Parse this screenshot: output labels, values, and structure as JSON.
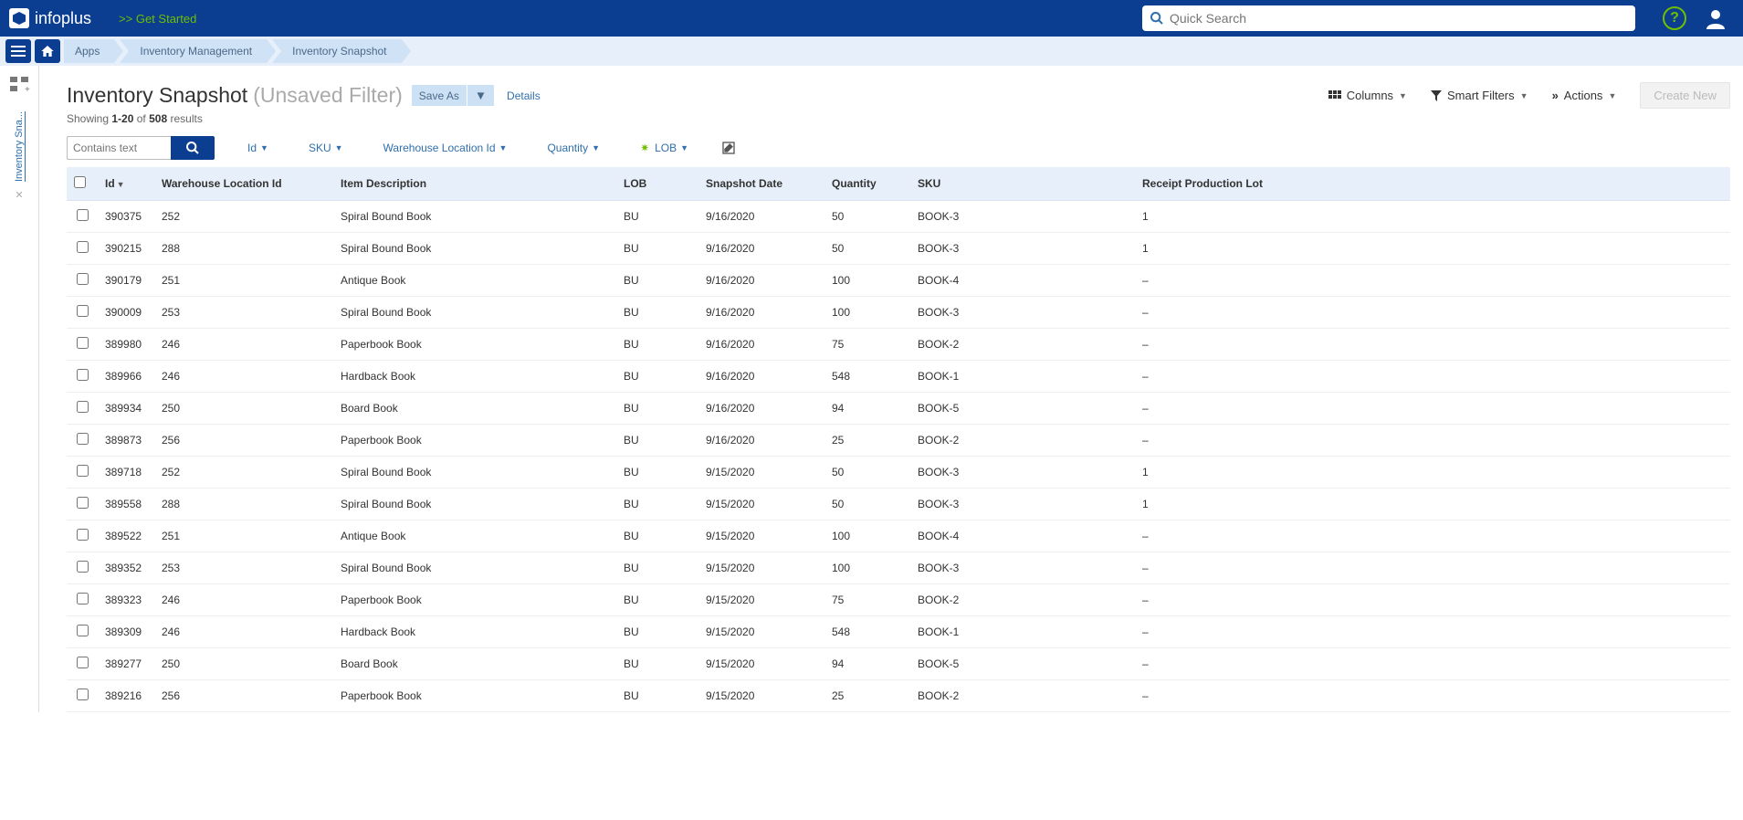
{
  "header": {
    "logo_text": "infoplus",
    "get_started": ">> Get Started",
    "quick_search_placeholder": "Quick Search"
  },
  "breadcrumbs": [
    "Apps",
    "Inventory Management",
    "Inventory Snapshot"
  ],
  "rail": {
    "tab_label": "Inventory Sna..."
  },
  "title": {
    "main": "Inventory Snapshot",
    "suffix": "(Unsaved Filter)",
    "save_as": "Save As",
    "details": "Details"
  },
  "toolbar": {
    "columns": "Columns",
    "smart_filters": "Smart Filters",
    "actions": "Actions",
    "create_new": "Create New"
  },
  "showing": {
    "range": "1-20",
    "total": "508",
    "prefix": "Showing",
    "suffix": "results",
    "of": "of"
  },
  "filters": {
    "search_placeholder": "Contains text",
    "items": [
      "Id",
      "SKU",
      "Warehouse Location Id",
      "Quantity",
      "LOB"
    ]
  },
  "columns": [
    "Id",
    "Warehouse Location Id",
    "Item Description",
    "LOB",
    "Snapshot Date",
    "Quantity",
    "SKU",
    "Receipt Production Lot"
  ],
  "rows": [
    {
      "id": "390375",
      "whl": "252",
      "desc": "Spiral Bound Book",
      "lob": "BU",
      "date": "9/16/2020",
      "qty": "50",
      "sku": "BOOK-3",
      "lot": "1"
    },
    {
      "id": "390215",
      "whl": "288",
      "desc": "Spiral Bound Book",
      "lob": "BU",
      "date": "9/16/2020",
      "qty": "50",
      "sku": "BOOK-3",
      "lot": "1"
    },
    {
      "id": "390179",
      "whl": "251",
      "desc": "Antique Book",
      "lob": "BU",
      "date": "9/16/2020",
      "qty": "100",
      "sku": "BOOK-4",
      "lot": "–"
    },
    {
      "id": "390009",
      "whl": "253",
      "desc": "Spiral Bound Book",
      "lob": "BU",
      "date": "9/16/2020",
      "qty": "100",
      "sku": "BOOK-3",
      "lot": "–"
    },
    {
      "id": "389980",
      "whl": "246",
      "desc": "Paperbook Book",
      "lob": "BU",
      "date": "9/16/2020",
      "qty": "75",
      "sku": "BOOK-2",
      "lot": "–"
    },
    {
      "id": "389966",
      "whl": "246",
      "desc": "Hardback Book",
      "lob": "BU",
      "date": "9/16/2020",
      "qty": "548",
      "sku": "BOOK-1",
      "lot": "–"
    },
    {
      "id": "389934",
      "whl": "250",
      "desc": "Board Book",
      "lob": "BU",
      "date": "9/16/2020",
      "qty": "94",
      "sku": "BOOK-5",
      "lot": "–"
    },
    {
      "id": "389873",
      "whl": "256",
      "desc": "Paperbook Book",
      "lob": "BU",
      "date": "9/16/2020",
      "qty": "25",
      "sku": "BOOK-2",
      "lot": "–"
    },
    {
      "id": "389718",
      "whl": "252",
      "desc": "Spiral Bound Book",
      "lob": "BU",
      "date": "9/15/2020",
      "qty": "50",
      "sku": "BOOK-3",
      "lot": "1"
    },
    {
      "id": "389558",
      "whl": "288",
      "desc": "Spiral Bound Book",
      "lob": "BU",
      "date": "9/15/2020",
      "qty": "50",
      "sku": "BOOK-3",
      "lot": "1"
    },
    {
      "id": "389522",
      "whl": "251",
      "desc": "Antique Book",
      "lob": "BU",
      "date": "9/15/2020",
      "qty": "100",
      "sku": "BOOK-4",
      "lot": "–"
    },
    {
      "id": "389352",
      "whl": "253",
      "desc": "Spiral Bound Book",
      "lob": "BU",
      "date": "9/15/2020",
      "qty": "100",
      "sku": "BOOK-3",
      "lot": "–"
    },
    {
      "id": "389323",
      "whl": "246",
      "desc": "Paperbook Book",
      "lob": "BU",
      "date": "9/15/2020",
      "qty": "75",
      "sku": "BOOK-2",
      "lot": "–"
    },
    {
      "id": "389309",
      "whl": "246",
      "desc": "Hardback Book",
      "lob": "BU",
      "date": "9/15/2020",
      "qty": "548",
      "sku": "BOOK-1",
      "lot": "–"
    },
    {
      "id": "389277",
      "whl": "250",
      "desc": "Board Book",
      "lob": "BU",
      "date": "9/15/2020",
      "qty": "94",
      "sku": "BOOK-5",
      "lot": "–"
    },
    {
      "id": "389216",
      "whl": "256",
      "desc": "Paperbook Book",
      "lob": "BU",
      "date": "9/15/2020",
      "qty": "25",
      "sku": "BOOK-2",
      "lot": "–"
    }
  ]
}
